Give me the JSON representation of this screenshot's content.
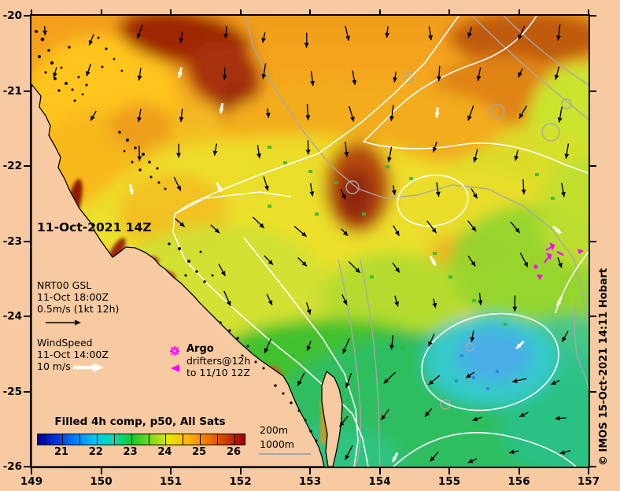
{
  "title_block": {
    "timestamp": "11-Oct-2021 14Z"
  },
  "axes": {
    "x_ticks": [
      "149",
      "150",
      "151",
      "152",
      "153",
      "154",
      "155",
      "156",
      "157"
    ],
    "y_ticks": [
      "-20",
      "-21",
      "-22",
      "-23",
      "-24",
      "-25",
      "-26"
    ]
  },
  "overlays": {
    "gsl": [
      "NRT00 GSL",
      "11-Oct 18:00Z",
      "0.5m/s (1kt 12h)"
    ],
    "wind": [
      "WindSpeed",
      "11-Oct 14:00Z",
      "10 m/s"
    ],
    "argo": {
      "title": "Argo",
      "lines": [
        "drifters@12h",
        "to 11/10 12Z"
      ]
    },
    "bathy": [
      "200m",
      "1000m"
    ],
    "colorbar": {
      "title": "Filled 4h comp, p50, All Sats",
      "tick_labels": [
        "21",
        "22",
        "23",
        "24",
        "25",
        "26"
      ]
    },
    "credit": "© IMOS 15-Oct-2021 14:11 Hobart"
  },
  "colors": {
    "background": "#F7CAA1",
    "land": "#F7CAA1",
    "coastline": "#000000",
    "contour_200m": "#FFFFFF",
    "contour_1000m": "#A8A8A8",
    "argo_marker": "#FF00FF",
    "colorbar_title": "#8F1600",
    "wind_arrow": "#000000",
    "wind_arrow_alt": "#FFFFFF",
    "colorbar_gradient": [
      "#00008F",
      "#0033E0",
      "#0080FF",
      "#00C4F0",
      "#00DDB0",
      "#10C830",
      "#7FD820",
      "#E8E800",
      "#FFB400",
      "#F07800",
      "#CC3C00",
      "#A00000"
    ]
  },
  "chart_data": {
    "type": "heatmap",
    "title": "Filled 4h comp, p50, All Sats",
    "colorbar_ticks": [
      21,
      22,
      23,
      24,
      25,
      26
    ],
    "x_range": [
      149,
      157
    ],
    "y_range": [
      -26,
      -20
    ]
  }
}
